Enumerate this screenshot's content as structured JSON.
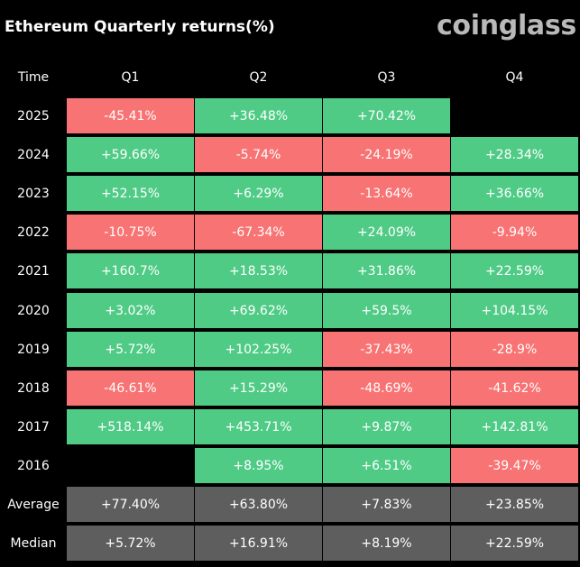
{
  "header": {
    "title": "Ethereum Quarterly returns(%)",
    "logo_text": "coinglass"
  },
  "colors": {
    "background": "#000000",
    "positive": "#4fcb86",
    "negative": "#f87373",
    "summary": "#5e5e5e",
    "empty": "#000000",
    "logo": "#b9b9b9"
  },
  "chart_data": {
    "type": "table",
    "title": "Ethereum Quarterly returns(%)",
    "corner_label": "Time",
    "columns": [
      "Q1",
      "Q2",
      "Q3",
      "Q4"
    ],
    "rows": [
      {
        "label": "2025",
        "kind": "year",
        "values": [
          "-45.41%",
          "+36.48%",
          "+70.42%",
          ""
        ]
      },
      {
        "label": "2024",
        "kind": "year",
        "values": [
          "+59.66%",
          "-5.74%",
          "-24.19%",
          "+28.34%"
        ]
      },
      {
        "label": "2023",
        "kind": "year",
        "values": [
          "+52.15%",
          "+6.29%",
          "-13.64%",
          "+36.66%"
        ]
      },
      {
        "label": "2022",
        "kind": "year",
        "values": [
          "-10.75%",
          "-67.34%",
          "+24.09%",
          "-9.94%"
        ]
      },
      {
        "label": "2021",
        "kind": "year",
        "values": [
          "+160.7%",
          "+18.53%",
          "+31.86%",
          "+22.59%"
        ]
      },
      {
        "label": "2020",
        "kind": "year",
        "values": [
          "+3.02%",
          "+69.62%",
          "+59.5%",
          "+104.15%"
        ]
      },
      {
        "label": "2019",
        "kind": "year",
        "values": [
          "+5.72%",
          "+102.25%",
          "-37.43%",
          "-28.9%"
        ]
      },
      {
        "label": "2018",
        "kind": "year",
        "values": [
          "-46.61%",
          "+15.29%",
          "-48.69%",
          "-41.62%"
        ]
      },
      {
        "label": "2017",
        "kind": "year",
        "values": [
          "+518.14%",
          "+453.71%",
          "+9.87%",
          "+142.81%"
        ]
      },
      {
        "label": "2016",
        "kind": "year",
        "values": [
          "",
          "+8.95%",
          "+6.51%",
          "-39.47%"
        ]
      },
      {
        "label": "Average",
        "kind": "summary",
        "values": [
          "+77.40%",
          "+63.80%",
          "+7.83%",
          "+23.85%"
        ]
      },
      {
        "label": "Median",
        "kind": "summary",
        "values": [
          "+5.72%",
          "+16.91%",
          "+8.19%",
          "+22.59%"
        ]
      }
    ]
  }
}
